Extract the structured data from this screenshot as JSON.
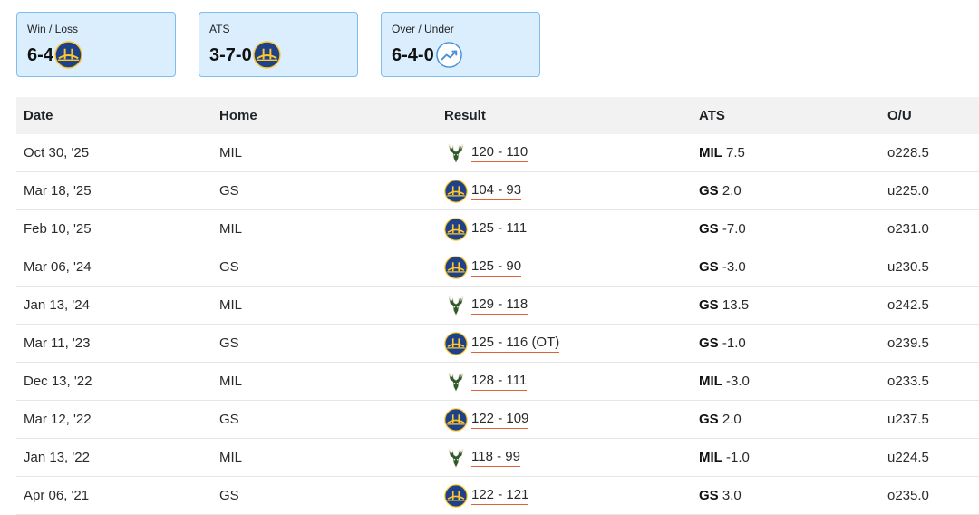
{
  "summary": {
    "win_loss": {
      "label": "Win / Loss",
      "value": "6-4",
      "icon": "warriors-logo"
    },
    "ats": {
      "label": "ATS",
      "value": "3-7-0",
      "icon": "warriors-logo"
    },
    "over_under": {
      "label": "Over / Under",
      "value": "6-4-0",
      "icon": "trend-up-icon"
    }
  },
  "table": {
    "headers": {
      "date": "Date",
      "home": "Home",
      "result": "Result",
      "ats": "ATS",
      "ou": "O/U"
    },
    "rows": [
      {
        "date": "Oct 30, '25",
        "home": "MIL",
        "winner": "bucks",
        "score": "120 - 110",
        "ats_team": "MIL",
        "ats_line": "7.5",
        "ou": "o228.5"
      },
      {
        "date": "Mar 18, '25",
        "home": "GS",
        "winner": "warriors",
        "score": "104 - 93",
        "ats_team": "GS",
        "ats_line": "2.0",
        "ou": "u225.0"
      },
      {
        "date": "Feb 10, '25",
        "home": "MIL",
        "winner": "warriors",
        "score": "125 - 111",
        "ats_team": "GS",
        "ats_line": "-7.0",
        "ou": "o231.0"
      },
      {
        "date": "Mar 06, '24",
        "home": "GS",
        "winner": "warriors",
        "score": "125 - 90",
        "ats_team": "GS",
        "ats_line": "-3.0",
        "ou": "u230.5"
      },
      {
        "date": "Jan 13, '24",
        "home": "MIL",
        "winner": "bucks",
        "score": "129 - 118",
        "ats_team": "GS",
        "ats_line": "13.5",
        "ou": "o242.5"
      },
      {
        "date": "Mar 11, '23",
        "home": "GS",
        "winner": "warriors",
        "score": "125 - 116 (OT)",
        "ats_team": "GS",
        "ats_line": "-1.0",
        "ou": "o239.5"
      },
      {
        "date": "Dec 13, '22",
        "home": "MIL",
        "winner": "bucks",
        "score": "128 - 111",
        "ats_team": "MIL",
        "ats_line": "-3.0",
        "ou": "o233.5"
      },
      {
        "date": "Mar 12, '22",
        "home": "GS",
        "winner": "warriors",
        "score": "122 - 109",
        "ats_team": "GS",
        "ats_line": "2.0",
        "ou": "u237.5"
      },
      {
        "date": "Jan 13, '22",
        "home": "MIL",
        "winner": "bucks",
        "score": "118 - 99",
        "ats_team": "MIL",
        "ats_line": "-1.0",
        "ou": "u224.5"
      },
      {
        "date": "Apr 06, '21",
        "home": "GS",
        "winner": "warriors",
        "score": "122 - 121",
        "ats_team": "GS",
        "ats_line": "3.0",
        "ou": "o235.0"
      }
    ]
  },
  "colors": {
    "card_bg": "#dbeefe",
    "card_border": "#7fbcf2",
    "warriors_blue": "#1d428a",
    "warriors_gold": "#ffc72c",
    "bucks_green": "#2b5a2e",
    "score_underline": "#e0603a"
  }
}
